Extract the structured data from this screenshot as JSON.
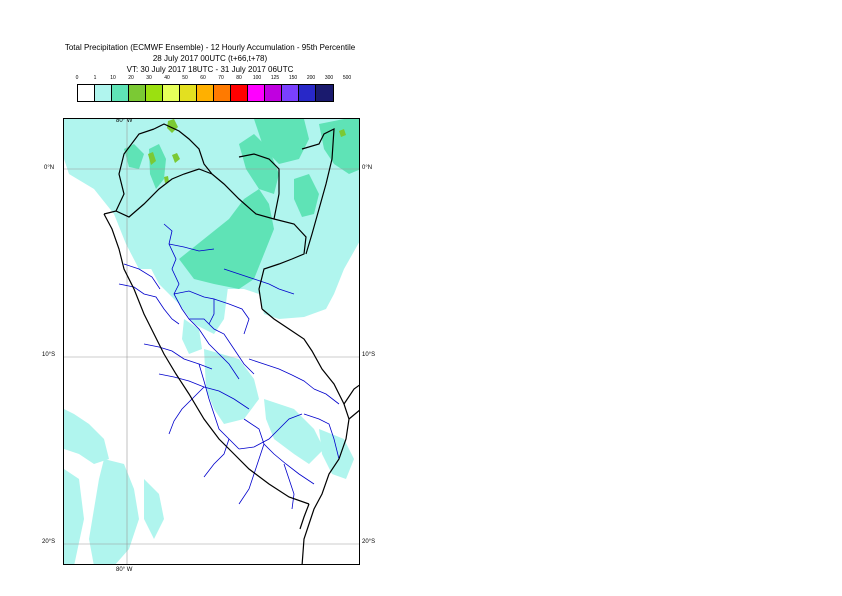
{
  "title": {
    "line1": "Total Precipitation (ECMWF Ensemble) - 12 Hourly Accumulation - 95th Percentile",
    "line2": "28 July 2017 00UTC (t+66,t+78)",
    "line3": "VT: 30 July 2017 18UTC - 31 July 2017 06UTC"
  },
  "legend": {
    "ticks": [
      "0",
      "1",
      "10",
      "20",
      "30",
      "40",
      "50",
      "60",
      "70",
      "80",
      "100",
      "125",
      "150",
      "200",
      "300",
      "500"
    ],
    "colors": [
      "#ffffff",
      "#b0f5ee",
      "#5fe3b6",
      "#7bc934",
      "#9be010",
      "#e6ff5a",
      "#e3e020",
      "#ffb000",
      "#ff7a00",
      "#ff0000",
      "#ff00ff",
      "#c000e0",
      "#7a40ff",
      "#2828c8",
      "#1a1a6e"
    ]
  },
  "map": {
    "lon_labels": {
      "top": "80° W",
      "bottom": "80° W"
    },
    "lat_labels": [
      "0°N",
      "10°S",
      "20°S"
    ],
    "colors": {
      "light_cyan": "#b0f5ee",
      "medium_teal": "#5fe3b6",
      "green": "#7bc934",
      "country_border": "#000000",
      "region_border": "#0000cc",
      "gridline": "#999999"
    }
  }
}
